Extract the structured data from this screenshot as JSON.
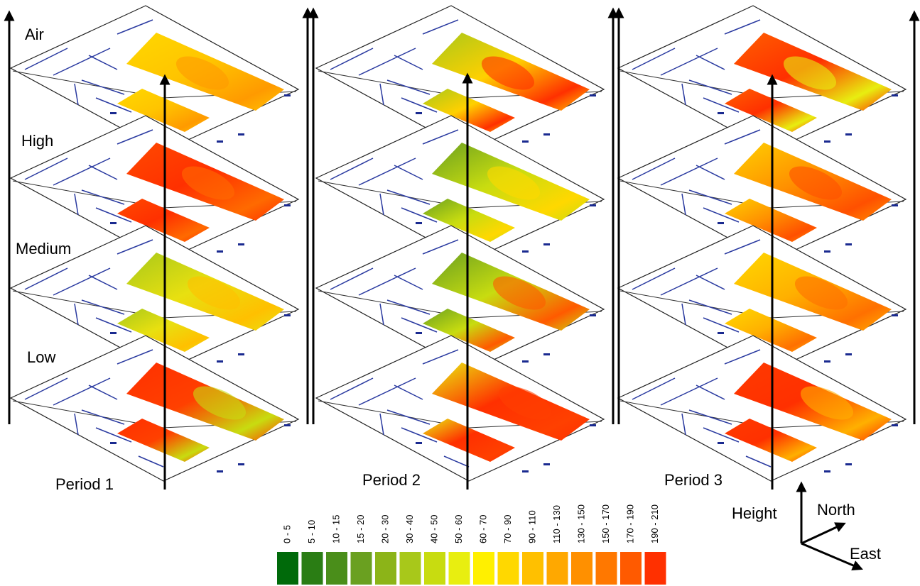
{
  "layers": [
    "Air",
    "High",
    "Medium",
    "Low"
  ],
  "periods": [
    "Period 1",
    "Period 2",
    "Period 3"
  ],
  "legend": [
    {
      "label": "0 - 5",
      "color": "#006a0a"
    },
    {
      "label": "5 - 10",
      "color": "#2a7d14"
    },
    {
      "label": "10 - 15",
      "color": "#4a8e1a"
    },
    {
      "label": "15 - 20",
      "color": "#6aa020"
    },
    {
      "label": "20 - 30",
      "color": "#8cb418"
    },
    {
      "label": "30 - 40",
      "color": "#a8c81a"
    },
    {
      "label": "40 - 50",
      "color": "#c8dc10"
    },
    {
      "label": "50 - 60",
      "color": "#e8ee10"
    },
    {
      "label": "60 - 70",
      "color": "#fff000"
    },
    {
      "label": "70 - 90",
      "color": "#ffd800"
    },
    {
      "label": "90 - 110",
      "color": "#ffc000"
    },
    {
      "label": "110 - 130",
      "color": "#ffa800"
    },
    {
      "label": "130 - 150",
      "color": "#ff9000"
    },
    {
      "label": "150 - 170",
      "color": "#ff7800"
    },
    {
      "label": "170 - 190",
      "color": "#ff5a00"
    },
    {
      "label": "190 - 210",
      "color": "#ff3000"
    }
  ],
  "compass": {
    "height": "Height",
    "north": "North",
    "east": "East"
  }
}
